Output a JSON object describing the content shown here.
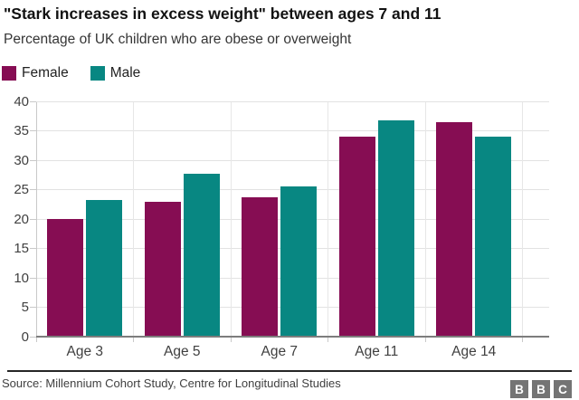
{
  "header": {
    "title": "\"Stark increases in excess weight\" between ages 7 and 11",
    "subtitle": "Percentage of UK children who are obese or overweight"
  },
  "chart_data": {
    "type": "bar",
    "title": "\"Stark increases in excess weight\" between ages 7 and 11",
    "subtitle": "Percentage of UK children who are obese or overweight",
    "categories": [
      "Age 3",
      "Age 5",
      "Age 7",
      "Age 11",
      "Age 14"
    ],
    "series": [
      {
        "name": "Female",
        "color": "#860D53",
        "values": [
          20,
          23,
          23.7,
          34,
          36.5
        ]
      },
      {
        "name": "Male",
        "color": "#088782",
        "values": [
          23.2,
          27.7,
          25.6,
          36.8,
          34
        ]
      }
    ],
    "xlabel": "",
    "ylabel": "",
    "ylim": [
      0,
      40
    ],
    "ytick_step": 5,
    "yticks": [
      0,
      5,
      10,
      15,
      20,
      25,
      30,
      35,
      40
    ],
    "grid": true,
    "legend_position": "top-left"
  },
  "footer": {
    "source": "Source: Millennium Cohort Study, Centre for Longitudinal Studies",
    "logo_letters": [
      "B",
      "B",
      "C"
    ]
  },
  "colors": {
    "female": "#860D53",
    "male": "#088782",
    "gridline": "#e2e2e2",
    "axis_line": "#7d7d7d",
    "text_dark": "#121212",
    "text_gray": "#404040",
    "logo_gray": "#747474"
  }
}
